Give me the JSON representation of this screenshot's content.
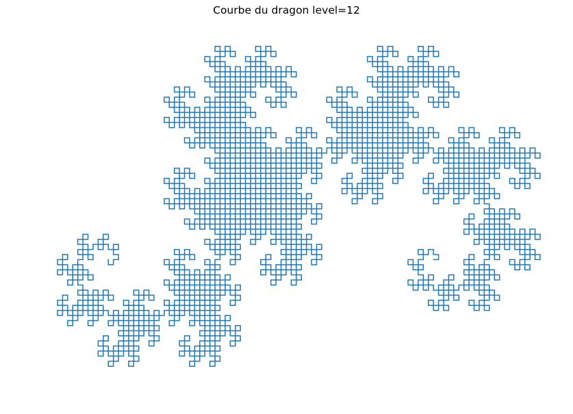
{
  "chart_data": {
    "type": "line",
    "title": "Courbe du dragon level=12",
    "xlabel": "",
    "ylabel": "",
    "axis": "off",
    "grid": false,
    "generator": {
      "name": "dragon-curve",
      "level": 12,
      "step": 1
    },
    "series": [
      {
        "color": "#1f77b4"
      }
    ]
  }
}
